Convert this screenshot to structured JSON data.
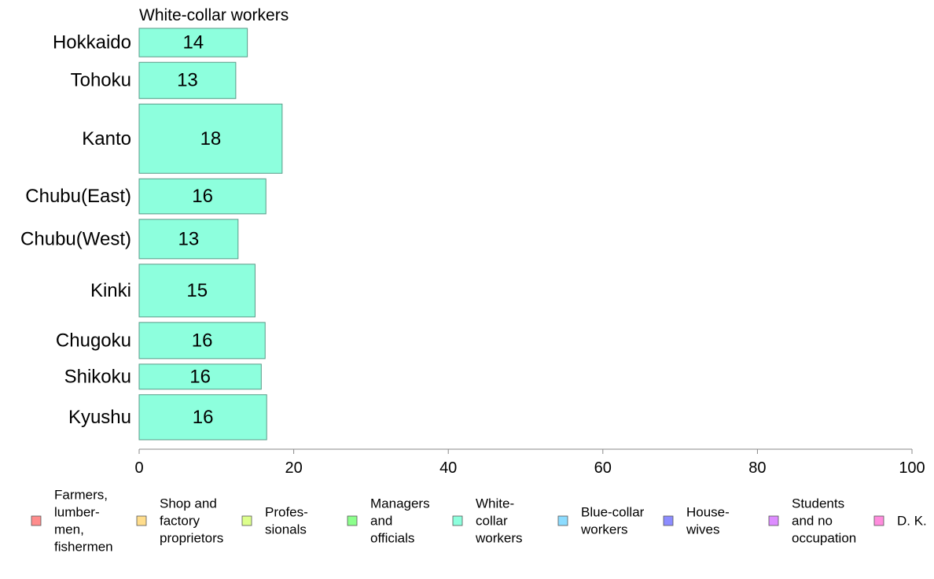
{
  "chart_data": {
    "type": "bar",
    "orientation": "horizontal",
    "title": "White-collar workers",
    "categories": [
      "Hokkaido",
      "Tohoku",
      "Kanto",
      "Chubu(East)",
      "Chubu(West)",
      "Kinki",
      "Chugoku",
      "Shikoku",
      "Kyushu"
    ],
    "values": [
      14,
      13,
      18,
      16,
      13,
      15,
      16,
      16,
      16
    ],
    "bar_lengths": [
      14.0,
      12.5,
      18.5,
      16.4,
      12.8,
      15.0,
      16.3,
      15.8,
      16.5
    ],
    "relative_bar_thickness": [
      1.0,
      1.27,
      2.43,
      1.23,
      1.38,
      1.85,
      1.27,
      0.88,
      1.58
    ],
    "xlim": [
      0,
      100
    ],
    "xticks": [
      "0",
      "20",
      "40",
      "60",
      "80",
      "100"
    ],
    "bar_color": "#8dffdd",
    "bar_stroke": "#5a9a88",
    "axis_color": "#888888",
    "legend": {
      "position": "bottom",
      "items": [
        {
          "lines": [
            "Farmers,",
            "lumber-",
            "men,",
            "fishermen"
          ],
          "color": "#ff8c8c"
        },
        {
          "lines": [
            "Shop and",
            "factory",
            "proprietors"
          ],
          "color": "#ffdd8c"
        },
        {
          "lines": [
            "Profes-",
            "sionals"
          ],
          "color": "#ddff8c"
        },
        {
          "lines": [
            "Managers",
            "and",
            "officials"
          ],
          "color": "#8cff8c"
        },
        {
          "lines": [
            "White-",
            "collar",
            "workers"
          ],
          "color": "#8dffdd"
        },
        {
          "lines": [
            "Blue-collar",
            "workers"
          ],
          "color": "#8cdcff"
        },
        {
          "lines": [
            "House-",
            "wives"
          ],
          "color": "#8c8cff"
        },
        {
          "lines": [
            "Students",
            "and no",
            "occupation"
          ],
          "color": "#dd8cff"
        },
        {
          "lines": [
            "D. K."
          ],
          "color": "#ff8cdd"
        }
      ]
    }
  }
}
